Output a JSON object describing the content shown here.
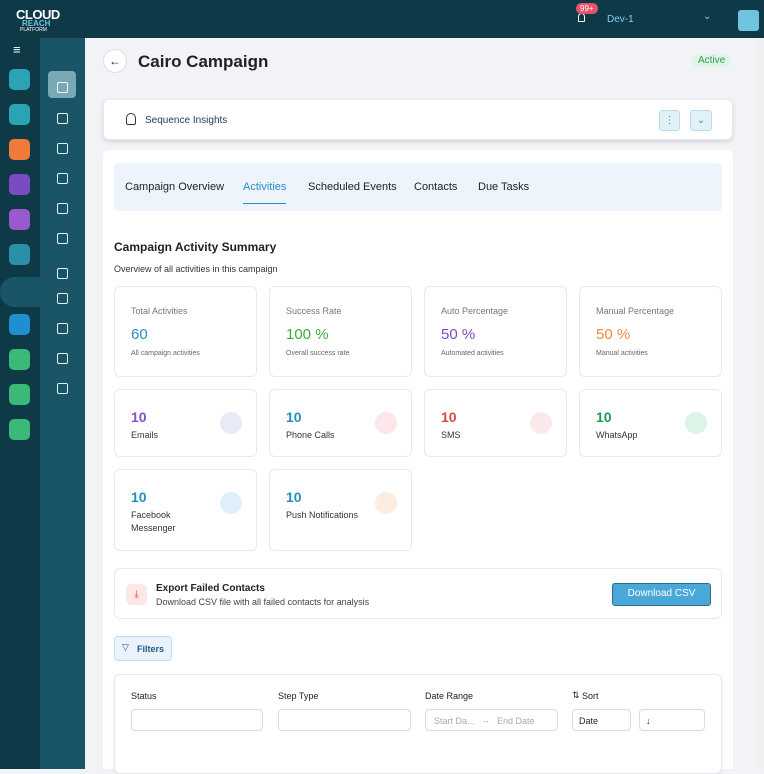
{
  "header": {
    "logo": [
      "CLOUD",
      "REACH",
      "PLATFORM"
    ],
    "badge": "99+",
    "user": "Dev-1"
  },
  "page": {
    "title": "Cairo Campaign",
    "status": "Active"
  },
  "insights": {
    "title": "Sequence Insights"
  },
  "tabs": [
    "Campaign Overview",
    "Activities",
    "Scheduled Events",
    "Contacts",
    "Due Tasks"
  ],
  "active_tab": 1,
  "summary": {
    "title": "Campaign Activity Summary",
    "subtitle": "Overview of all activities in this campaign",
    "stats": [
      {
        "label": "Total Activities",
        "value": "60",
        "note": "All campaign activities",
        "color": "#2a8dc8"
      },
      {
        "label": "Success Rate",
        "value": "100 %",
        "note": "Overall success rate",
        "color": "#3cae3c"
      },
      {
        "label": "Auto Percentage",
        "value": "50 %",
        "note": "Automated activities",
        "color": "#7b4bc4"
      },
      {
        "label": "Manual Percentage",
        "value": "50 %",
        "note": "Manual activities",
        "color": "#f08a3c"
      }
    ],
    "channels": [
      {
        "value": "10",
        "label": "Emails",
        "color": "#8a4fd0"
      },
      {
        "value": "10",
        "label": "Phone Calls",
        "color": "#1f8fbf"
      },
      {
        "value": "10",
        "label": "SMS",
        "color": "#e04545"
      },
      {
        "value": "10",
        "label": "WhatsApp",
        "color": "#1a9a5a"
      },
      {
        "value": "10",
        "label": "Facebook Messenger",
        "color": "#1f8fbf"
      },
      {
        "value": "10",
        "label": "Push Notifications",
        "color": "#1f8fbf"
      }
    ]
  },
  "export": {
    "title": "Export Failed Contacts",
    "subtitle": "Download CSV file with all failed contacts for analysis",
    "button": "Download CSV"
  },
  "filters": {
    "button": "Filters",
    "fields": [
      "Status",
      "Step Type",
      "Date Range",
      "Sort"
    ],
    "start_placeholder": "Start Da...",
    "end_placeholder": "End Date",
    "sort_field": "Date",
    "sort_dir": "↓"
  }
}
